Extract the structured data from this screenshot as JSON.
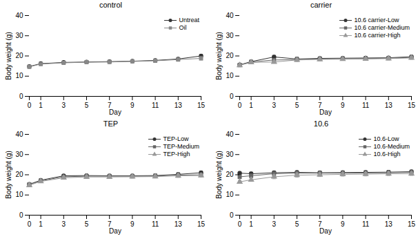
{
  "chart_data": [
    {
      "type": "line",
      "title": "control",
      "xlabel": "Day",
      "ylabel": "Body weight (g)",
      "x": [
        0,
        1,
        3,
        5,
        7,
        9,
        11,
        13,
        15
      ],
      "xlim": [
        0,
        15
      ],
      "xticks": [
        0,
        1,
        3,
        5,
        7,
        9,
        11,
        13,
        15
      ],
      "ylim": [
        0,
        40
      ],
      "yticks": [
        0,
        10,
        20,
        30,
        40
      ],
      "grid": false,
      "legend": "upper right",
      "series": [
        {
          "name": "Untreat",
          "color": "#333333",
          "marker": "circle",
          "line_style": "solid",
          "values": [
            14.8,
            16.2,
            16.8,
            17.0,
            17.2,
            17.4,
            17.8,
            18.5,
            20.0
          ],
          "errors": [
            0.4,
            0.5,
            0.5,
            0.6,
            0.6,
            0.6,
            0.7,
            0.7,
            0.8
          ]
        },
        {
          "name": "Oil",
          "color": "#888888",
          "marker": "square",
          "line_style": "solid",
          "values": [
            14.6,
            16.0,
            16.6,
            16.9,
            17.0,
            17.3,
            17.6,
            18.2,
            18.8
          ],
          "errors": [
            0.4,
            0.5,
            0.5,
            0.6,
            0.6,
            0.6,
            0.7,
            0.7,
            0.8
          ]
        }
      ]
    },
    {
      "type": "line",
      "title": "carrier",
      "xlabel": "Day",
      "ylabel": "Body weight (g)",
      "x": [
        0,
        1,
        3,
        5,
        7,
        9,
        11,
        13,
        15
      ],
      "xlim": [
        0,
        15
      ],
      "xticks": [
        0,
        1,
        3,
        5,
        7,
        9,
        11,
        13,
        15
      ],
      "ylim": [
        0,
        40
      ],
      "yticks": [
        0,
        10,
        20,
        30,
        40
      ],
      "grid": false,
      "legend": "upper right",
      "series": [
        {
          "name": "10.6 carrier-Low",
          "color": "#333333",
          "marker": "circle",
          "line_style": "solid",
          "values": [
            15.6,
            17.2,
            19.5,
            18.5,
            18.8,
            18.9,
            19.0,
            19.1,
            19.6
          ],
          "errors": [
            0.4,
            0.5,
            0.8,
            0.9,
            0.7,
            0.6,
            0.6,
            0.6,
            0.7
          ]
        },
        {
          "name": "10.6 carrier-Medium",
          "color": "#666666",
          "marker": "square",
          "line_style": "solid",
          "values": [
            15.5,
            17.0,
            18.0,
            18.2,
            18.5,
            18.6,
            18.7,
            18.9,
            19.3
          ],
          "errors": [
            0.4,
            0.5,
            0.6,
            0.7,
            0.6,
            0.6,
            0.6,
            0.6,
            0.7
          ]
        },
        {
          "name": "10.6 carrier-High",
          "color": "#999999",
          "marker": "triangle",
          "line_style": "solid",
          "values": [
            15.4,
            16.8,
            17.0,
            18.0,
            18.3,
            18.4,
            18.5,
            18.7,
            19.0
          ],
          "errors": [
            0.4,
            0.5,
            0.6,
            0.7,
            0.6,
            0.6,
            0.6,
            0.6,
            0.7
          ]
        }
      ]
    },
    {
      "type": "line",
      "title": "TEP",
      "xlabel": "Day",
      "ylabel": "Body weight (g)",
      "x": [
        0,
        1,
        3,
        5,
        7,
        9,
        11,
        13,
        15
      ],
      "xlim": [
        0,
        15
      ],
      "xticks": [
        0,
        1,
        3,
        5,
        7,
        9,
        11,
        13,
        15
      ],
      "ylim": [
        0,
        40
      ],
      "yticks": [
        0,
        10,
        20,
        30,
        40
      ],
      "grid": false,
      "legend": "upper right",
      "series": [
        {
          "name": "TEP-Low",
          "color": "#333333",
          "marker": "circle",
          "line_style": "solid",
          "values": [
            15.3,
            17.3,
            19.5,
            19.6,
            19.5,
            19.5,
            19.6,
            20.2,
            21.0
          ],
          "errors": [
            0.5,
            0.5,
            0.6,
            0.6,
            0.7,
            0.7,
            0.7,
            0.8,
            0.8
          ]
        },
        {
          "name": "TEP-Medium",
          "color": "#666666",
          "marker": "square",
          "line_style": "solid",
          "values": [
            15.2,
            17.0,
            19.0,
            19.3,
            19.3,
            19.3,
            19.4,
            19.8,
            20.0
          ],
          "errors": [
            0.5,
            0.5,
            0.6,
            0.6,
            0.7,
            0.7,
            0.7,
            0.8,
            0.8
          ]
        },
        {
          "name": "TEP-High",
          "color": "#999999",
          "marker": "triangle",
          "line_style": "solid",
          "values": [
            14.8,
            16.7,
            18.5,
            18.9,
            18.9,
            19.0,
            19.1,
            19.5,
            19.6
          ],
          "errors": [
            0.5,
            0.5,
            0.6,
            0.6,
            0.7,
            0.7,
            0.7,
            0.8,
            0.8
          ]
        }
      ]
    },
    {
      "type": "line",
      "title": "10.6",
      "xlabel": "Day",
      "ylabel": "Body weight (g)",
      "x": [
        0,
        1,
        3,
        5,
        7,
        9,
        11,
        13,
        15
      ],
      "xlim": [
        0,
        15
      ],
      "xticks": [
        0,
        1,
        3,
        5,
        7,
        9,
        11,
        13,
        15
      ],
      "ylim": [
        0,
        40
      ],
      "yticks": [
        0,
        10,
        20,
        30,
        40
      ],
      "grid": false,
      "legend": "upper right",
      "series": [
        {
          "name": "10.6-Low",
          "color": "#333333",
          "marker": "circle",
          "line_style": "solid",
          "values": [
            20.8,
            20.5,
            21.0,
            21.2,
            21.0,
            21.1,
            21.2,
            21.3,
            21.5
          ],
          "errors": [
            0.8,
            0.8,
            0.8,
            0.8,
            0.8,
            0.8,
            0.8,
            0.8,
            0.8
          ]
        },
        {
          "name": "10.6-Medium",
          "color": "#666666",
          "marker": "square",
          "line_style": "solid",
          "values": [
            19.0,
            19.5,
            20.5,
            20.8,
            20.8,
            20.8,
            20.9,
            21.0,
            21.2
          ],
          "errors": [
            0.8,
            0.8,
            1.0,
            1.0,
            0.9,
            0.9,
            0.9,
            0.9,
            0.8
          ]
        },
        {
          "name": "10.6-High",
          "color": "#999999",
          "marker": "triangle",
          "line_style": "solid",
          "values": [
            16.5,
            17.5,
            19.0,
            19.8,
            20.0,
            20.2,
            20.3,
            20.5,
            20.5
          ],
          "errors": [
            0.8,
            0.8,
            1.0,
            1.0,
            0.9,
            0.9,
            0.9,
            0.9,
            0.8
          ]
        }
      ]
    }
  ]
}
